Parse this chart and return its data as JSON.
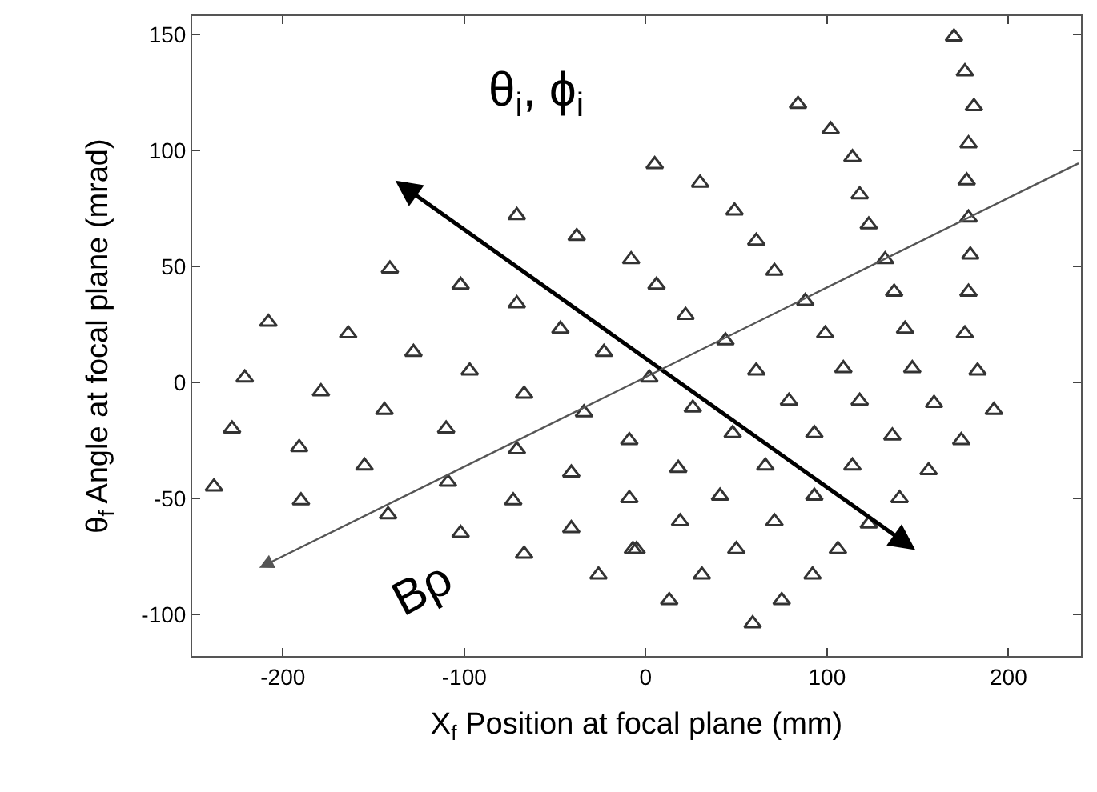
{
  "chart_data": {
    "type": "scatter",
    "xlabel": "X$_{f}$ Position at focal plane (mm)",
    "ylabel": "θ$_{f}$ Angle at focal plane (mrad)",
    "xlim": [
      -250,
      240
    ],
    "ylim": [
      -118,
      158
    ],
    "xticks": [
      -200,
      -100,
      0,
      100,
      200
    ],
    "yticks": [
      -100,
      -50,
      0,
      50,
      100,
      150
    ],
    "annotations": [
      "θ$_{i}$, ϕ$_{i}$",
      "Bρ"
    ],
    "series": [
      {
        "color": "#333333",
        "marker": "triangle",
        "x": [
          -208,
          -221,
          -228,
          -238,
          -164,
          -179,
          -191,
          -190,
          -128,
          -144,
          -155,
          -142,
          -97,
          -110,
          -109,
          -102,
          -67,
          -71,
          -73,
          -67,
          -47,
          -23,
          -34,
          -41,
          -41,
          -26,
          -9,
          -9,
          -7,
          -141,
          -102,
          -71,
          -71,
          -38,
          -8,
          5,
          30,
          49,
          61,
          71,
          6,
          22,
          84,
          102,
          114,
          118,
          123,
          132,
          137,
          170,
          176,
          181,
          178,
          177,
          178,
          179,
          178,
          88,
          44,
          2,
          99,
          143,
          176,
          61,
          109,
          147,
          183,
          26,
          79,
          118,
          159,
          192,
          48,
          93,
          136,
          174,
          18,
          66,
          114,
          156,
          41,
          93,
          140,
          19,
          71,
          123,
          -5,
          50,
          106,
          31,
          92,
          13,
          75,
          59
        ],
        "values": [
          26,
          2,
          -20,
          -45,
          21,
          -4,
          -28,
          -51,
          13,
          -12,
          -36,
          -57,
          5,
          -20,
          -43,
          -65,
          -5,
          -29,
          -51,
          -74,
          23,
          13,
          -13,
          -39,
          -63,
          -83,
          -25,
          -50,
          -72,
          49,
          42,
          34,
          72,
          63,
          53,
          94,
          86,
          74,
          61,
          48,
          42,
          29,
          120,
          109,
          97,
          81,
          68,
          53,
          39,
          149,
          134,
          119,
          103,
          87,
          71,
          55,
          39,
          35,
          18,
          2,
          21,
          23,
          21,
          5,
          6,
          6,
          5,
          -11,
          -8,
          -8,
          -9,
          -12,
          -22,
          -22,
          -23,
          -25,
          -37,
          -36,
          -36,
          -38,
          -49,
          -49,
          -50,
          -60,
          -60,
          -61,
          -72,
          -72,
          -72,
          -83,
          -83,
          -94,
          -94,
          -104
        ]
      }
    ]
  }
}
